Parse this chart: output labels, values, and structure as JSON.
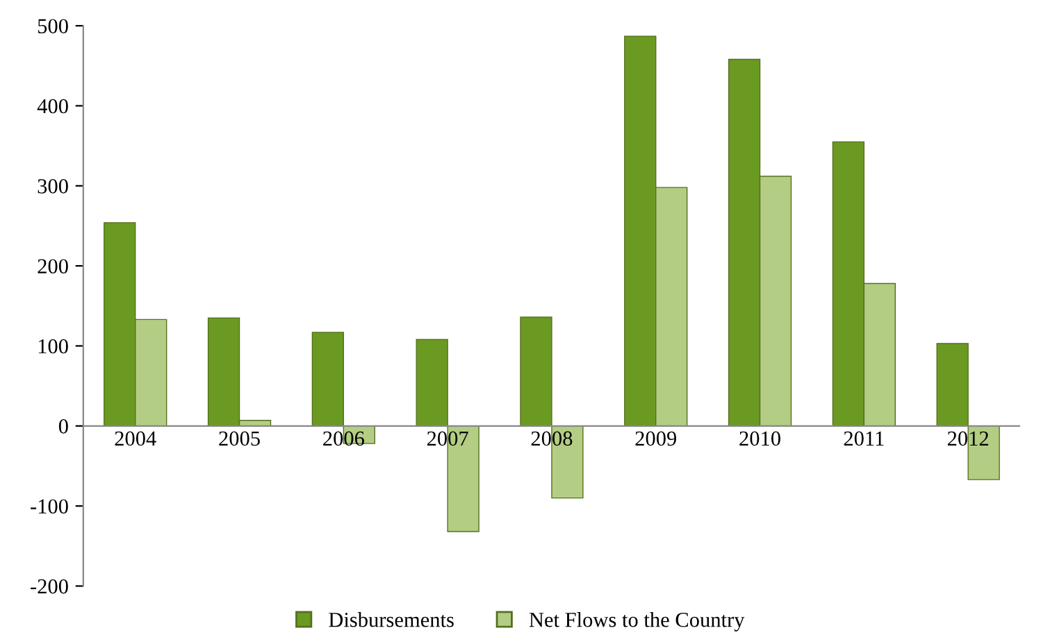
{
  "chart_data": {
    "type": "bar",
    "categories": [
      "2004",
      "2005",
      "2006",
      "2007",
      "2008",
      "2009",
      "2010",
      "2011",
      "2012"
    ],
    "series": [
      {
        "name": "Disbursements",
        "color": "#6b9a22",
        "values": [
          254,
          135,
          117,
          108,
          136,
          487,
          458,
          355,
          103
        ]
      },
      {
        "name": "Net Flows to the Country",
        "color": "#b3cd84",
        "values": [
          133,
          7,
          -22,
          -132,
          -90,
          298,
          312,
          178,
          -67
        ]
      }
    ],
    "ylim": [
      -200,
      500
    ],
    "yticks": [
      -200,
      -100,
      0,
      100,
      200,
      300,
      400,
      500
    ],
    "grid": false,
    "legend": "bottom"
  }
}
